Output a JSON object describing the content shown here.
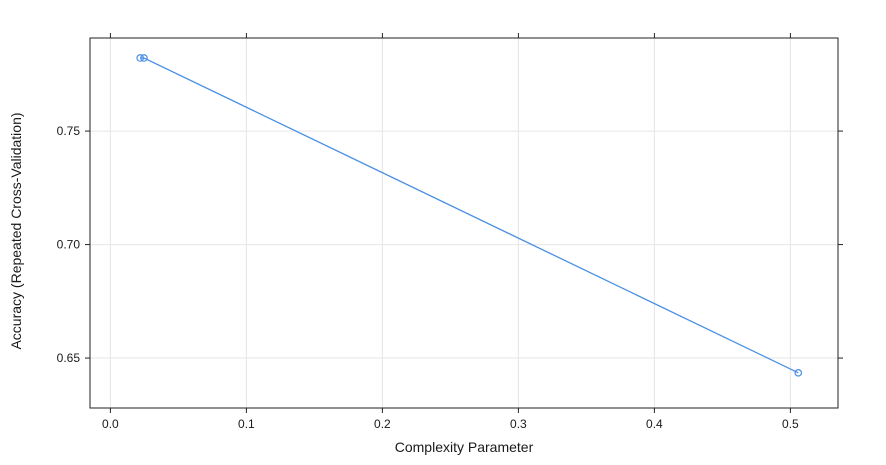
{
  "chart_data": {
    "type": "line",
    "title": "",
    "xlabel": "Complexity Parameter",
    "ylabel": "Accuracy (Repeated Cross-Validation)",
    "xlim": [
      -0.015,
      0.535
    ],
    "ylim": [
      0.628,
      0.791
    ],
    "x_ticks": [
      0.0,
      0.1,
      0.2,
      0.3,
      0.4,
      0.5
    ],
    "x_tick_labels": [
      "0.0",
      "0.1",
      "0.2",
      "0.3",
      "0.4",
      "0.5"
    ],
    "y_ticks": [
      0.65,
      0.7,
      0.75
    ],
    "y_tick_labels": [
      "0.65",
      "0.70",
      "0.75"
    ],
    "grid": true,
    "series": [
      {
        "x": [
          0.0219,
          0.0247,
          0.5058
        ],
        "y": [
          0.7822,
          0.7822,
          0.6435
        ],
        "color": "#4a90e2"
      }
    ]
  }
}
